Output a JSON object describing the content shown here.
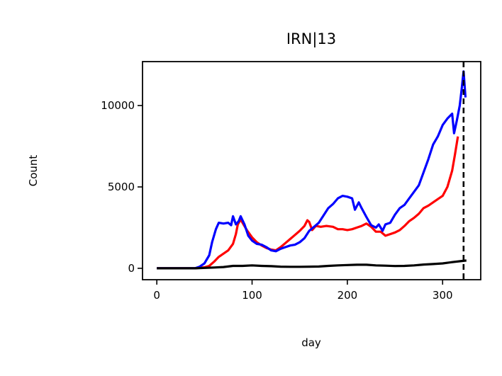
{
  "chart_data": {
    "type": "line",
    "title": "IRN|13",
    "xlabel": "day",
    "ylabel": "Count",
    "xlim": [
      -15,
      340
    ],
    "ylim": [
      -700,
      12700
    ],
    "xticks": [
      0,
      100,
      200,
      300
    ],
    "yticks": [
      0,
      5000,
      10000
    ],
    "grid": false,
    "legend": "none",
    "vline": {
      "x": 322,
      "style": "dashed",
      "color": "#000000"
    },
    "series": [
      {
        "color": "#ff0000",
        "points": [
          [
            0,
            0
          ],
          [
            40,
            0
          ],
          [
            50,
            60
          ],
          [
            55,
            150
          ],
          [
            60,
            400
          ],
          [
            65,
            700
          ],
          [
            70,
            900
          ],
          [
            75,
            1100
          ],
          [
            80,
            1500
          ],
          [
            83,
            2100
          ],
          [
            85,
            2700
          ],
          [
            88,
            3000
          ],
          [
            91,
            2700
          ],
          [
            95,
            2300
          ],
          [
            100,
            1900
          ],
          [
            105,
            1600
          ],
          [
            110,
            1400
          ],
          [
            115,
            1250
          ],
          [
            120,
            1150
          ],
          [
            125,
            1100
          ],
          [
            130,
            1300
          ],
          [
            135,
            1550
          ],
          [
            140,
            1800
          ],
          [
            145,
            2050
          ],
          [
            150,
            2300
          ],
          [
            155,
            2600
          ],
          [
            158,
            2950
          ],
          [
            160,
            2850
          ],
          [
            163,
            2350
          ],
          [
            167,
            2600
          ],
          [
            172,
            2550
          ],
          [
            178,
            2600
          ],
          [
            185,
            2550
          ],
          [
            190,
            2400
          ],
          [
            195,
            2400
          ],
          [
            200,
            2350
          ],
          [
            205,
            2400
          ],
          [
            210,
            2500
          ],
          [
            215,
            2600
          ],
          [
            220,
            2750
          ],
          [
            225,
            2550
          ],
          [
            230,
            2250
          ],
          [
            235,
            2250
          ],
          [
            240,
            2000
          ],
          [
            245,
            2100
          ],
          [
            250,
            2200
          ],
          [
            255,
            2350
          ],
          [
            260,
            2600
          ],
          [
            265,
            2900
          ],
          [
            270,
            3100
          ],
          [
            275,
            3350
          ],
          [
            280,
            3700
          ],
          [
            285,
            3850
          ],
          [
            290,
            4050
          ],
          [
            295,
            4250
          ],
          [
            300,
            4450
          ],
          [
            305,
            5000
          ],
          [
            310,
            6000
          ],
          [
            313,
            7000
          ],
          [
            316,
            8100
          ]
        ]
      },
      {
        "color": "#0000ff",
        "points": [
          [
            0,
            0
          ],
          [
            40,
            0
          ],
          [
            45,
            100
          ],
          [
            50,
            300
          ],
          [
            55,
            800
          ],
          [
            58,
            1600
          ],
          [
            62,
            2400
          ],
          [
            65,
            2800
          ],
          [
            70,
            2750
          ],
          [
            75,
            2800
          ],
          [
            78,
            2650
          ],
          [
            80,
            3200
          ],
          [
            83,
            2700
          ],
          [
            86,
            2900
          ],
          [
            88,
            3200
          ],
          [
            92,
            2700
          ],
          [
            96,
            2000
          ],
          [
            100,
            1700
          ],
          [
            105,
            1500
          ],
          [
            110,
            1450
          ],
          [
            115,
            1300
          ],
          [
            120,
            1100
          ],
          [
            125,
            1050
          ],
          [
            130,
            1200
          ],
          [
            135,
            1300
          ],
          [
            140,
            1400
          ],
          [
            145,
            1450
          ],
          [
            150,
            1600
          ],
          [
            155,
            1850
          ],
          [
            160,
            2300
          ],
          [
            165,
            2550
          ],
          [
            170,
            2800
          ],
          [
            175,
            3250
          ],
          [
            180,
            3700
          ],
          [
            185,
            3950
          ],
          [
            190,
            4300
          ],
          [
            195,
            4450
          ],
          [
            200,
            4400
          ],
          [
            205,
            4300
          ],
          [
            208,
            3600
          ],
          [
            212,
            4050
          ],
          [
            215,
            3700
          ],
          [
            220,
            3150
          ],
          [
            225,
            2650
          ],
          [
            230,
            2500
          ],
          [
            233,
            2700
          ],
          [
            237,
            2300
          ],
          [
            240,
            2700
          ],
          [
            245,
            2800
          ],
          [
            250,
            3300
          ],
          [
            255,
            3700
          ],
          [
            260,
            3900
          ],
          [
            265,
            4300
          ],
          [
            270,
            4700
          ],
          [
            275,
            5100
          ],
          [
            280,
            5900
          ],
          [
            285,
            6700
          ],
          [
            290,
            7600
          ],
          [
            295,
            8100
          ],
          [
            300,
            8800
          ],
          [
            305,
            9200
          ],
          [
            310,
            9500
          ],
          [
            312,
            8300
          ],
          [
            315,
            9100
          ],
          [
            318,
            10000
          ],
          [
            320,
            11000
          ],
          [
            322,
            12100
          ],
          [
            324,
            10500
          ]
        ]
      },
      {
        "color": "#000000",
        "points": [
          [
            0,
            0
          ],
          [
            40,
            0
          ],
          [
            60,
            50
          ],
          [
            70,
            80
          ],
          [
            80,
            150
          ],
          [
            90,
            150
          ],
          [
            100,
            180
          ],
          [
            110,
            150
          ],
          [
            120,
            130
          ],
          [
            130,
            100
          ],
          [
            140,
            90
          ],
          [
            150,
            90
          ],
          [
            160,
            100
          ],
          [
            170,
            110
          ],
          [
            180,
            150
          ],
          [
            190,
            180
          ],
          [
            200,
            200
          ],
          [
            210,
            220
          ],
          [
            220,
            220
          ],
          [
            230,
            180
          ],
          [
            240,
            160
          ],
          [
            250,
            140
          ],
          [
            260,
            150
          ],
          [
            270,
            180
          ],
          [
            280,
            230
          ],
          [
            290,
            260
          ],
          [
            300,
            300
          ],
          [
            310,
            380
          ],
          [
            320,
            450
          ],
          [
            325,
            480
          ]
        ]
      }
    ]
  }
}
